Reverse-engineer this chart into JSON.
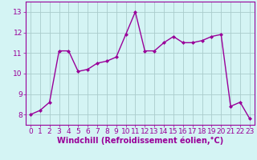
{
  "x": [
    0,
    1,
    2,
    3,
    4,
    5,
    6,
    7,
    8,
    9,
    10,
    11,
    12,
    13,
    14,
    15,
    16,
    17,
    18,
    19,
    20,
    21,
    22,
    23
  ],
  "y": [
    8.0,
    8.2,
    8.6,
    11.1,
    11.1,
    10.1,
    10.2,
    10.5,
    10.6,
    10.8,
    11.9,
    13.0,
    11.1,
    11.1,
    11.5,
    11.8,
    11.5,
    11.5,
    11.6,
    11.8,
    11.9,
    8.4,
    8.6,
    7.8
  ],
  "line_color": "#990099",
  "marker": "D",
  "marker_size": 2,
  "linewidth": 1.0,
  "xlabel": "Windchill (Refroidissement éolien,°C)",
  "ylim": [
    7.5,
    13.5
  ],
  "xlim": [
    -0.5,
    23.5
  ],
  "yticks": [
    8,
    9,
    10,
    11,
    12,
    13
  ],
  "xticks": [
    0,
    1,
    2,
    3,
    4,
    5,
    6,
    7,
    8,
    9,
    10,
    11,
    12,
    13,
    14,
    15,
    16,
    17,
    18,
    19,
    20,
    21,
    22,
    23
  ],
  "background_color": "#d4f4f4",
  "grid_color": "#aacccc",
  "line_purple": "#990099",
  "tick_fontsize": 6.5,
  "xlabel_fontsize": 7.0
}
